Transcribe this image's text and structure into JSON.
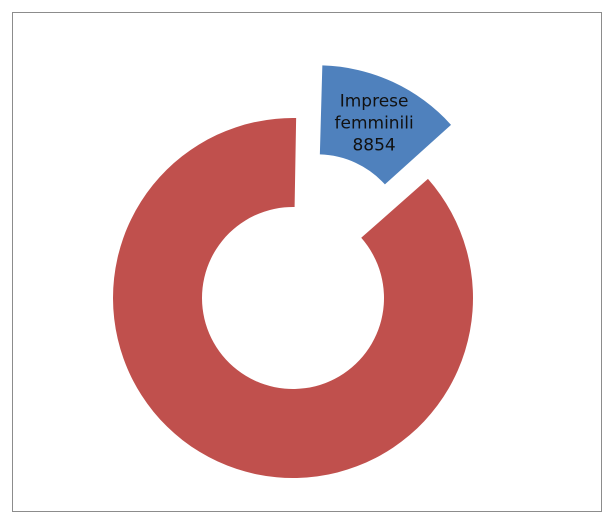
{
  "chart_data": {
    "type": "pie",
    "variant": "doughnut-exploded",
    "slices": [
      {
        "category": "Imprese femminili",
        "value": 8854,
        "label_lines": [
          "Imprese",
          "femminili",
          "8854"
        ],
        "color": "#4F81BD",
        "exploded": true
      },
      {
        "category": "",
        "value": 59000,
        "label_lines": [],
        "color": "#C0504D",
        "exploded": false
      }
    ]
  }
}
